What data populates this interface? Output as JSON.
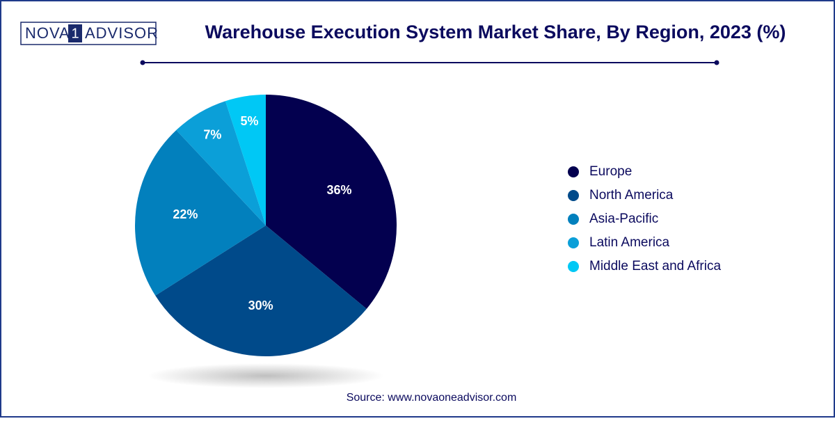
{
  "logo": {
    "left": "NOVA",
    "mark": "1",
    "right": "ADVISOR"
  },
  "chart_data": {
    "type": "pie",
    "title": "Warehouse Execution System Market Share, By Region, 2023 (%)",
    "categories": [
      "Europe",
      "North America",
      "Asia-Pacific",
      "Latin America",
      "Middle East and Africa"
    ],
    "values": [
      36,
      30,
      22,
      7,
      5
    ],
    "value_labels": [
      "36%",
      "30%",
      "22%",
      "7%",
      "5%"
    ],
    "colors": [
      "#03004f",
      "#004a8a",
      "#0280bd",
      "#0b9fd8",
      "#00c8f5"
    ],
    "legend": "right",
    "source": "Source: www.novaoneadvisor.com"
  }
}
